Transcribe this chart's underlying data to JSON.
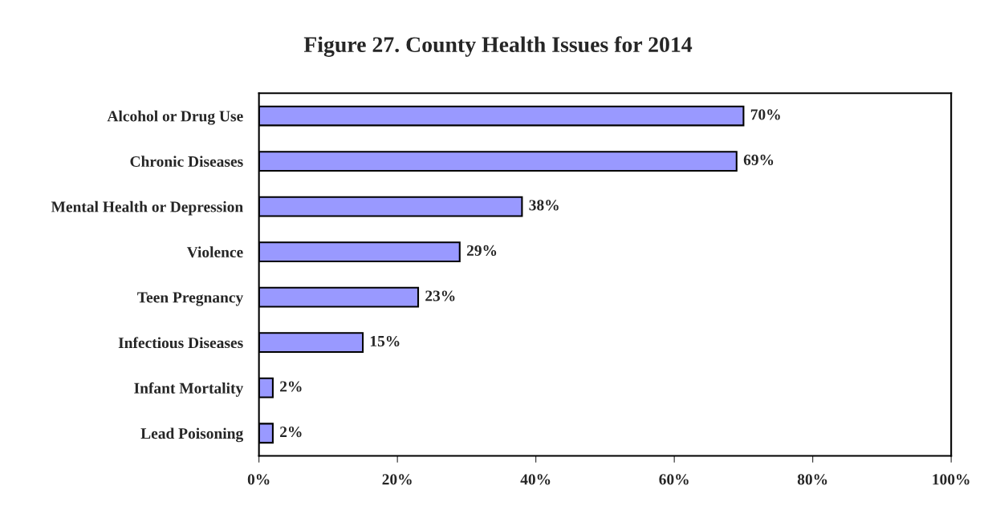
{
  "chart_data": {
    "type": "bar",
    "orientation": "horizontal",
    "title": "Figure 27. County Health Issues for 2014",
    "categories": [
      "Alcohol or Drug Use",
      "Chronic Diseases",
      "Mental Health or Depression",
      "Violence",
      "Teen Pregnancy",
      "Infectious Diseases",
      "Infant Mortality",
      "Lead Poisoning"
    ],
    "values": [
      70,
      69,
      38,
      29,
      23,
      15,
      2,
      2
    ],
    "value_labels": [
      "70%",
      "69%",
      "38%",
      "29%",
      "23%",
      "15%",
      "2%",
      "2%"
    ],
    "color": "#9999ff",
    "xlim": [
      0,
      100
    ],
    "xticks": [
      {
        "value": 0,
        "label": "0%"
      },
      {
        "value": 20,
        "label": "20%"
      },
      {
        "value": 40,
        "label": "40%"
      },
      {
        "value": 60,
        "label": "60%"
      },
      {
        "value": 80,
        "label": "80%"
      },
      {
        "value": 100,
        "label": "100%"
      }
    ],
    "grid": false,
    "legend": false
  }
}
